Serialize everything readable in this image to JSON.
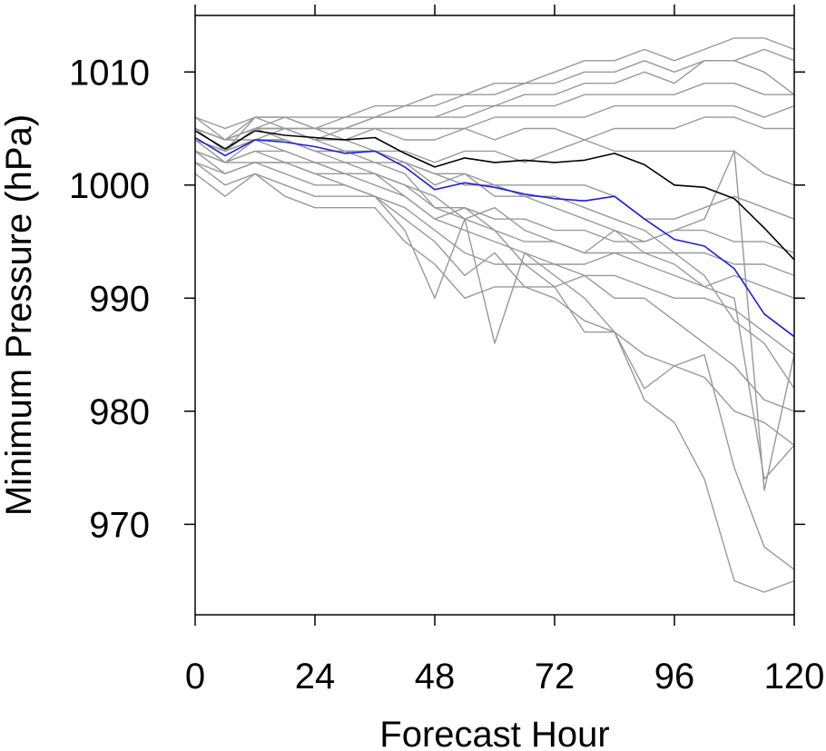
{
  "chart_data": {
    "type": "line",
    "title": "",
    "xlabel": "Forecast Hour",
    "ylabel": "Minimum Pressure (hPa)",
    "xlim": [
      0,
      120
    ],
    "ylim": [
      962,
      1015
    ],
    "xticks": [
      0,
      24,
      48,
      72,
      96,
      120
    ],
    "yticks": [
      970,
      980,
      990,
      1000,
      1010
    ],
    "xtick_labels": [
      "0",
      "24",
      "48",
      "72",
      "96",
      "120"
    ],
    "ytick_labels": [
      "970",
      "980",
      "990",
      "1000",
      "1010"
    ],
    "grid": false,
    "legend": "none",
    "x": [
      0,
      6,
      12,
      18,
      24,
      30,
      36,
      42,
      48,
      54,
      60,
      66,
      72,
      78,
      84,
      90,
      96,
      102,
      108,
      114,
      120
    ],
    "series": [
      {
        "color": "#000000",
        "role": "highlight",
        "values": [
          1004.8,
          1003.2,
          1004.8,
          1004.4,
          1004.2,
          1004.0,
          1004.2,
          1002.8,
          1001.6,
          1002.4,
          1002.0,
          1002.2,
          1002.0,
          1002.2,
          1002.8,
          1001.8,
          1000.0,
          999.8,
          998.8,
          996.2,
          993.4
        ]
      },
      {
        "color": "#1f1fd6",
        "role": "highlight",
        "values": [
          1004.2,
          1002.6,
          1004.0,
          1003.8,
          1003.4,
          1002.8,
          1003.0,
          1001.6,
          999.6,
          1000.2,
          999.8,
          999.2,
          998.8,
          998.6,
          999.0,
          997.0,
          995.2,
          994.6,
          992.6,
          988.6,
          986.6
        ]
      },
      {
        "color": "#999999",
        "role": "member",
        "values": [
          1006,
          1005,
          1006,
          1006,
          1006,
          1006,
          1007,
          1007,
          1008,
          1008,
          1009,
          1009,
          1010,
          1011,
          1011,
          1012,
          1011,
          1012,
          1013,
          1013,
          1012
        ]
      },
      {
        "color": "#999999",
        "role": "member",
        "values": [
          1006,
          1004,
          1006,
          1006,
          1005,
          1006,
          1006,
          1007,
          1007,
          1008,
          1008,
          1009,
          1009,
          1010,
          1010,
          1011,
          1010,
          1011,
          1011,
          1012,
          1011
        ]
      },
      {
        "color": "#999999",
        "role": "member",
        "values": [
          1005,
          1004,
          1005,
          1005,
          1005,
          1005,
          1006,
          1006,
          1006,
          1007,
          1007,
          1008,
          1008,
          1009,
          1009,
          1010,
          1009,
          1011,
          1011,
          1010,
          1008
        ]
      },
      {
        "color": "#999999",
        "role": "member",
        "values": [
          1005,
          1004,
          1005,
          1006,
          1005,
          1005,
          1006,
          1006,
          1006,
          1006,
          1007,
          1007,
          1007,
          1008,
          1008,
          1008,
          1008,
          1009,
          1009,
          1008,
          1008
        ]
      },
      {
        "color": "#999999",
        "role": "member",
        "values": [
          1005,
          1003,
          1006,
          1005,
          1005,
          1004,
          1005,
          1005,
          1005,
          1005,
          1006,
          1006,
          1006,
          1006,
          1007,
          1007,
          1007,
          1007,
          1007,
          1006,
          1007
        ]
      },
      {
        "color": "#999999",
        "role": "member",
        "values": [
          1005,
          1004,
          1005,
          1005,
          1004,
          1005,
          1005,
          1004,
          1004,
          1005,
          1004,
          1005,
          1005,
          1004,
          1005,
          1005,
          1005,
          1006,
          1006,
          1005,
          1005
        ]
      },
      {
        "color": "#999999",
        "role": "member",
        "values": [
          1004,
          1003,
          1005,
          1005,
          1004,
          1004,
          1003,
          1003,
          1002,
          1003,
          1003,
          1002,
          1003,
          1004,
          1003,
          1003,
          1003,
          1003,
          1003,
          1001,
          1000
        ]
      },
      {
        "color": "#999999",
        "role": "member",
        "values": [
          1004,
          1003,
          1004,
          1004,
          1003,
          1003,
          1003,
          1002,
          1000,
          1001,
          1000,
          1000,
          1000,
          1000,
          999,
          997,
          997,
          998,
          999,
          998,
          997
        ]
      },
      {
        "color": "#999999",
        "role": "member",
        "values": [
          1004,
          1002,
          1004,
          1004,
          1003,
          1002,
          1002,
          1001,
          998,
          998,
          997,
          997,
          996,
          996,
          995,
          995,
          996,
          996,
          995,
          995,
          994
        ]
      },
      {
        "color": "#999999",
        "role": "member",
        "values": [
          1003,
          1002,
          1003,
          1002,
          1002,
          1001,
          1001,
          1000,
          998,
          997,
          996,
          995,
          995,
          994,
          994,
          994,
          994,
          994,
          993,
          993,
          992
        ]
      },
      {
        "color": "#999999",
        "role": "member",
        "values": [
          1003,
          1002,
          1002,
          1002,
          1001,
          1001,
          1000,
          999,
          997,
          996,
          995,
          994,
          993,
          993,
          994,
          993,
          992,
          991,
          992,
          991,
          990
        ]
      },
      {
        "color": "#999999",
        "role": "member",
        "values": [
          1002,
          1001,
          1002,
          1001,
          1000,
          1000,
          999,
          998,
          996,
          994,
          993,
          993,
          993,
          992,
          992,
          991,
          990,
          990,
          989,
          987,
          985
        ]
      },
      {
        "color": "#999999",
        "role": "member",
        "values": [
          1002,
          1000,
          1001,
          1000,
          999,
          999,
          999,
          997,
          995,
          992,
          994,
          991,
          991,
          992,
          990,
          990,
          988,
          986,
          984,
          981,
          980
        ]
      },
      {
        "color": "#999999",
        "role": "member",
        "values": [
          1001,
          999,
          1001,
          999,
          998,
          998,
          998,
          995,
          993,
          990,
          991,
          991,
          990,
          988,
          987,
          985,
          984,
          983,
          980,
          979,
          977
        ]
      },
      {
        "color": "#999999",
        "role": "member",
        "values": [
          1003,
          1001,
          1002,
          1002,
          1001,
          1000,
          999,
          996,
          990,
          997,
          986,
          994,
          992,
          990,
          987,
          981,
          979,
          974,
          965,
          964,
          965
        ]
      },
      {
        "color": "#999999",
        "role": "member",
        "values": [
          1004,
          1003,
          1004,
          1003,
          1002,
          1001,
          1001,
          999,
          997,
          998,
          996,
          993,
          991,
          987,
          987,
          982,
          984,
          985,
          975,
          968,
          966
        ]
      },
      {
        "color": "#999999",
        "role": "member",
        "values": [
          1004,
          1002,
          1003,
          1003,
          1002,
          1002,
          1001,
          1000,
          999,
          997,
          998,
          996,
          995,
          994,
          996,
          994,
          993,
          991,
          990,
          974,
          977
        ]
      },
      {
        "color": "#999999",
        "role": "member",
        "values": [
          1005,
          1004,
          1004,
          1005,
          1004,
          1003,
          1003,
          1002,
          1001,
          1001,
          999,
          999,
          998,
          997,
          996,
          995,
          996,
          997,
          1003,
          973,
          985
        ]
      },
      {
        "color": "#999999",
        "role": "member",
        "values": [
          1004,
          1003,
          1005,
          1004,
          1003,
          1003,
          1002,
          1002,
          1001,
          1000,
          1000,
          999,
          999,
          998,
          997,
          996,
          994,
          992,
          988,
          986,
          982
        ]
      }
    ]
  }
}
